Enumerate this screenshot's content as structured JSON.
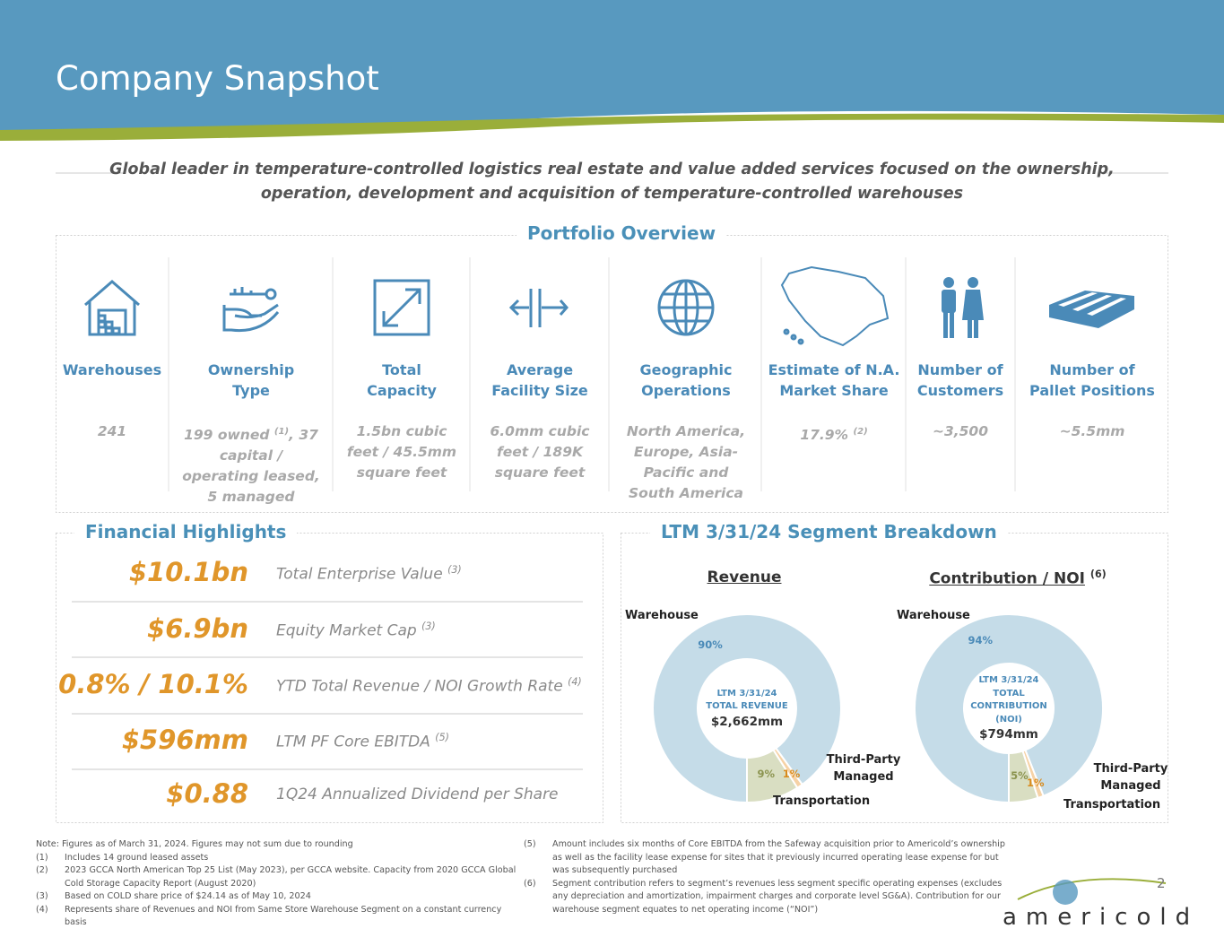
{
  "header": {
    "title": "Company Snapshot"
  },
  "tagline": [
    "Global leader in temperature-controlled logistics real estate and value added services focused on the ownership,",
    "operation, development and acquisition of temperature-controlled warehouses"
  ],
  "portfolio": {
    "title": "Portfolio Overview",
    "items": [
      {
        "label": [
          "Warehouses"
        ],
        "value": [
          "241"
        ]
      },
      {
        "label": [
          "Ownership",
          "Type"
        ],
        "value": [
          "199 owned ",
          {
            "sup": "(1)"
          },
          ", 37 capital / operating leased, 5 managed"
        ]
      },
      {
        "label": [
          "Total",
          "Capacity"
        ],
        "value": [
          "1.5bn cubic feet / 45.5mm square feet"
        ]
      },
      {
        "label": [
          "Average",
          "Facility Size"
        ],
        "value": [
          "6.0mm cubic feet / 189K square feet"
        ]
      },
      {
        "label": [
          "Geographic",
          "Operations"
        ],
        "value": [
          "North America, Europe, Asia-Pacific and South America"
        ]
      },
      {
        "label": [
          "Estimate of N.A.",
          "Market Share"
        ],
        "value": [
          "17.9% ",
          {
            "sup": "(2)"
          }
        ]
      },
      {
        "label": [
          "Number of",
          "Customers"
        ],
        "value": [
          "~3,500"
        ]
      },
      {
        "label": [
          "Number of",
          "Pallet Positions"
        ],
        "value": [
          "~5.5mm"
        ]
      }
    ]
  },
  "financial": {
    "title": "Financial Highlights",
    "rows": [
      {
        "value": "$10.1bn",
        "label": "Total Enterprise Value",
        "note": "(3)"
      },
      {
        "value": "$6.9bn",
        "label": "Equity Market Cap",
        "note": "(3)"
      },
      {
        "value": "0.8% / 10.1%",
        "label": "YTD Total Revenue / NOI Growth Rate",
        "note": "(4)"
      },
      {
        "value": "$596mm",
        "label": "LTM PF Core EBITDA",
        "note": "(5)"
      },
      {
        "value": "$0.88",
        "label": "1Q24 Annualized Dividend per Share"
      }
    ]
  },
  "segments": {
    "title": "LTM 3/31/24 Segment Breakdown"
  },
  "chart_data": [
    {
      "type": "donut",
      "title": "Revenue",
      "center_label": [
        "LTM 3/31/24",
        "TOTAL REVENUE"
      ],
      "center_value": "$2,662mm",
      "categories": [
        "Warehouse",
        "Third-Party Managed",
        "Transportation"
      ],
      "values": [
        90,
        1,
        9
      ],
      "value_labels": [
        "90%",
        "1%",
        "9%"
      ],
      "colors": [
        "#c5dce8",
        "#f6d2a6",
        "#d9dec2"
      ]
    },
    {
      "type": "donut",
      "title": "Contribution / NOI",
      "title_note": "(6)",
      "center_label": [
        "LTM 3/31/24",
        "TOTAL",
        "CONTRIBUTION",
        "(NOI)"
      ],
      "center_value": "$794mm",
      "categories": [
        "Warehouse",
        "Third-Party Managed",
        "Transportation"
      ],
      "values": [
        94,
        1,
        5
      ],
      "value_labels": [
        "94%",
        "1%",
        "5%"
      ],
      "colors": [
        "#c5dce8",
        "#f6d2a6",
        "#d9dec2"
      ]
    }
  ],
  "footnotes": {
    "note": "Note: Figures as of March 31, 2024. Figures may not sum due to rounding",
    "items": [
      {
        "marker": "(1)",
        "text": "Includes 14 ground leased assets"
      },
      {
        "marker": "(2)",
        "text": "2023 GCCA North American Top 25 List (May 2023), per GCCA website. Capacity from 2020 GCCA Global Cold Storage Capacity Report (August 2020)"
      },
      {
        "marker": "(3)",
        "text": "Based on COLD share price of $24.14 as of May 10, 2024"
      },
      {
        "marker": "(4)",
        "text": "Represents share of Revenues and NOI from Same Store Warehouse Segment on a constant currency basis"
      },
      {
        "marker": "(5)",
        "text": "Amount includes six months of Core EBITDA from the Safeway acquisition prior to Americold’s ownership as well as the facility lease expense for sites that it previously incurred operating lease expense for but was subsequently purchased"
      },
      {
        "marker": "(6)",
        "text": "Segment contribution refers to segment’s revenues less segment specific operating expenses (excludes any depreciation and amortization, impairment charges and corporate level SG&A). Contribution for our warehouse segment equates to net operating income (“NOI”)"
      }
    ]
  },
  "page_number": "2",
  "logo": "americold"
}
